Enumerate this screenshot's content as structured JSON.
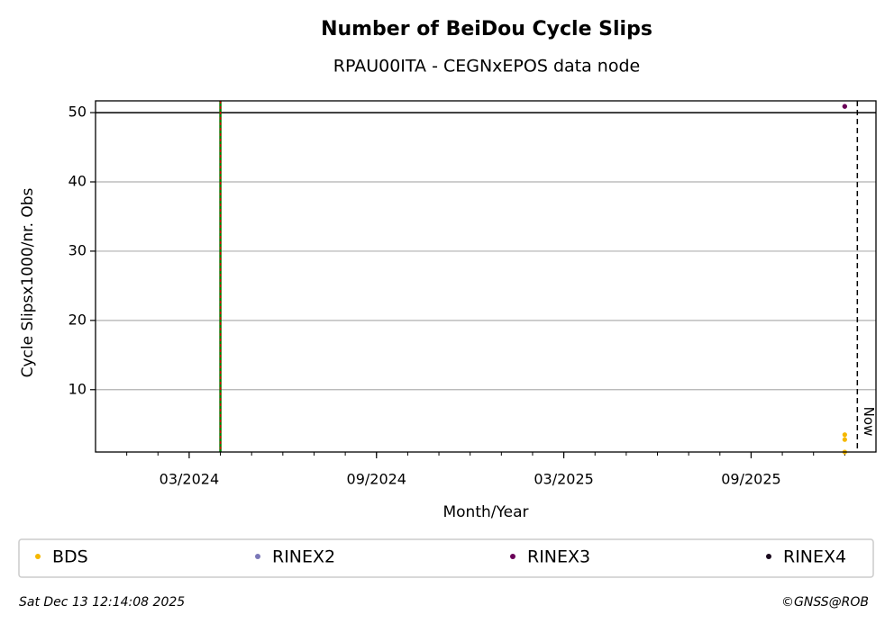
{
  "chart_data": {
    "type": "scatter",
    "title": "Number of BeiDou Cycle Slips",
    "subtitle": "RPAU00ITA - CEGNxEPOS data node",
    "xlabel": "Month/Year",
    "ylabel": "Cycle Slipsx1000/nr. Obs",
    "xlim": [
      "2023-12",
      "2026-01"
    ],
    "xticks": [
      {
        "value": "2024-03",
        "label": "03/2024"
      },
      {
        "value": "2024-09",
        "label": "09/2024"
      },
      {
        "value": "2025-03",
        "label": "03/2025"
      },
      {
        "value": "2025-09",
        "label": "09/2025"
      }
    ],
    "ylim": [
      1,
      51.7
    ],
    "yticks": [
      10,
      20,
      30,
      40,
      50
    ],
    "grid": true,
    "threshold": 50,
    "event_line": "2024-04",
    "event_colors": [
      "#008000",
      "#d00000"
    ],
    "now_label": "Now",
    "timestamp": "Sat Dec 13 12:14:08 2025",
    "credit": "©GNSS@ROB",
    "series": [
      {
        "name": "BDS",
        "color": "#f5b800",
        "x": [
          "2025-12",
          "2025-12",
          "2025-12"
        ],
        "values": [
          1.0,
          2.8,
          3.5
        ]
      },
      {
        "name": "RINEX2",
        "color": "#7b78b8",
        "x": [],
        "values": []
      },
      {
        "name": "RINEX3",
        "color": "#6a0058",
        "x": [
          "2025-12",
          "2025-12"
        ],
        "values": [
          50.9,
          50.9
        ]
      },
      {
        "name": "RINEX4",
        "color": "#1a0a1e",
        "x": [],
        "values": []
      }
    ]
  }
}
